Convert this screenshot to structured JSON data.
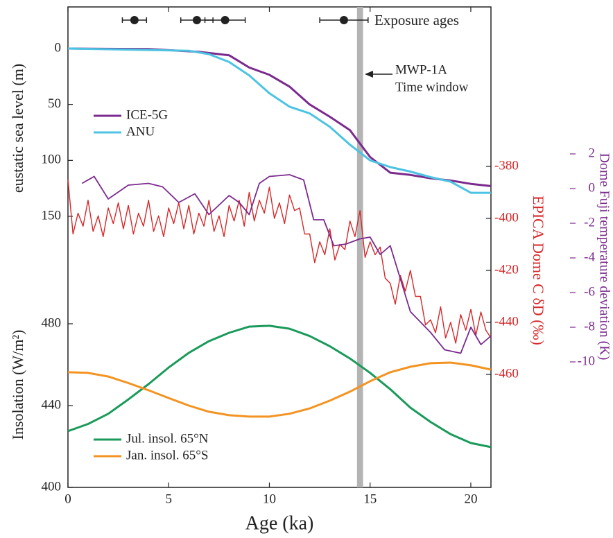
{
  "chart_data": {
    "type": "line",
    "xlabel": "Age (ka)",
    "xlim": [
      0,
      21
    ],
    "xticks": [
      0,
      5,
      10,
      15,
      20
    ],
    "exposure_ages": {
      "label": "Exposure ages",
      "color": "#222222",
      "values": [
        3.3,
        6.4,
        7.8,
        13.7
      ],
      "errors": [
        0.6,
        0.8,
        1.0,
        1.2
      ]
    },
    "annotation": {
      "label": "MWP-1A",
      "sublabel": "Time window",
      "window": [
        14.35,
        14.65
      ],
      "color": "#b4b4b4"
    },
    "sea_level": {
      "ylabel": "eustatic sea level (m)",
      "ylim": [
        0,
        150
      ],
      "yticks": [
        0,
        50,
        100,
        150
      ],
      "series": [
        {
          "name": "ICE-5G",
          "color": "#7b2a8e",
          "x": [
            0,
            4,
            6.5,
            8,
            9,
            10,
            11,
            12,
            13,
            14,
            15,
            16,
            17,
            18,
            19,
            20,
            21
          ],
          "values": [
            0,
            0.5,
            3,
            6,
            17,
            23.5,
            34,
            50,
            61,
            73,
            97,
            111,
            113,
            116,
            118,
            121,
            123
          ]
        },
        {
          "name": "ANU",
          "color": "#4cc3e3",
          "x": [
            0,
            6,
            7,
            8,
            9,
            10,
            11,
            12,
            13,
            14,
            15,
            16,
            17,
            18,
            19,
            20,
            21
          ],
          "values": [
            0,
            2,
            5,
            12,
            24,
            40,
            52,
            58,
            70,
            86,
            100,
            106,
            110,
            115,
            119,
            129,
            129
          ]
        }
      ]
    },
    "epica": {
      "ylabel": "EPICA Dome C δD (‰)",
      "color": "#d62728",
      "ylim": [
        -460,
        -380
      ],
      "yticks": [
        -380,
        -400,
        -420,
        -440,
        -460
      ],
      "x": [
        0,
        0.25,
        0.5,
        0.75,
        1,
        1.25,
        1.5,
        1.75,
        2,
        2.25,
        2.5,
        2.75,
        3,
        3.25,
        3.5,
        3.75,
        4,
        4.25,
        4.5,
        4.75,
        5,
        5.25,
        5.5,
        5.75,
        6,
        6.25,
        6.5,
        6.75,
        7,
        7.25,
        7.5,
        7.75,
        8,
        8.25,
        8.5,
        8.75,
        9,
        9.25,
        9.5,
        9.75,
        10,
        10.25,
        10.5,
        10.75,
        11,
        11.25,
        11.5,
        11.75,
        12,
        12.25,
        12.5,
        12.75,
        13,
        13.25,
        13.5,
        13.75,
        14,
        14.25,
        14.5,
        14.75,
        15,
        15.25,
        15.5,
        15.75,
        16,
        16.25,
        16.5,
        16.75,
        17,
        17.25,
        17.5,
        17.75,
        18,
        18.25,
        18.5,
        18.75,
        19,
        19.25,
        19.5,
        19.75,
        20,
        20.25,
        20.5,
        20.75,
        21
      ],
      "values": [
        -385,
        -406,
        -398,
        -403,
        -393,
        -405,
        -399,
        -407,
        -396,
        -402,
        -394,
        -404,
        -395,
        -406,
        -398,
        -403,
        -393,
        -405,
        -399,
        -407,
        -396,
        -402,
        -394,
        -404,
        -395,
        -406,
        -398,
        -403,
        -393,
        -405,
        -399,
        -407,
        -395,
        -401,
        -393,
        -403,
        -390,
        -401,
        -393,
        -398,
        -388,
        -400,
        -394,
        -402,
        -391,
        -397,
        -396,
        -406,
        -406,
        -417,
        -409,
        -414,
        -404,
        -416,
        -410,
        -412,
        -401,
        -407,
        -397,
        -415,
        -409,
        -414,
        -411,
        -423,
        -425,
        -433,
        -422,
        -428,
        -420,
        -430,
        -430,
        -441,
        -439,
        -444,
        -434,
        -446,
        -440,
        -448,
        -437,
        -443,
        -435,
        -445,
        -436,
        -443,
        -446
      ]
    },
    "dome_fuji": {
      "ylabel": "Dome Fuji temperature deviation (K)",
      "color": "#7b2a8e",
      "ylim": [
        -10,
        2
      ],
      "yticks": [
        2,
        0,
        -2,
        -4,
        -6,
        -8,
        -10
      ],
      "x": [
        0.7,
        1.3,
        2,
        3,
        4,
        4.7,
        5.5,
        6.3,
        7,
        8,
        8.5,
        9,
        9.5,
        10,
        11,
        11.7,
        12.2,
        12.7,
        13.2,
        13.8,
        14.5,
        15,
        15.5,
        16,
        17,
        18,
        18.7,
        19.5,
        20,
        20.5,
        21
      ],
      "values": [
        0.3,
        0.7,
        -0.6,
        0.2,
        0.3,
        0.1,
        -0.8,
        -0.3,
        -1.5,
        -0.4,
        -0.8,
        -1.5,
        0.3,
        0.7,
        0.8,
        0.5,
        -1.8,
        -1.8,
        -3.3,
        -3.2,
        -2.9,
        -2.8,
        -3.8,
        -3.3,
        -7.1,
        -8.3,
        -9.3,
        -9.5,
        -8,
        -9,
        -8.5
      ]
    },
    "insolation": {
      "ylabel": "Insolation (W/m²)",
      "ylim": [
        400,
        480
      ],
      "yticks": [
        400,
        440,
        480
      ],
      "series": [
        {
          "name": "Jul. insol. 65°N",
          "color": "#1a9a5a",
          "x": [
            0,
            1,
            2,
            3,
            4,
            5,
            6,
            7,
            8,
            9,
            10,
            11,
            12,
            13,
            14,
            15,
            16,
            17,
            18,
            19,
            20,
            21
          ],
          "values": [
            427.5,
            431,
            436,
            443,
            450.5,
            458.6,
            465.8,
            471.5,
            475.6,
            478.6,
            479,
            477.6,
            474,
            469,
            463,
            456,
            448,
            439,
            432,
            426,
            421.7,
            419.7
          ]
        },
        {
          "name": "Jan. insol. 65°S",
          "color": "#f39321",
          "x": [
            0,
            1,
            2,
            3,
            4,
            5,
            6,
            7,
            8,
            9,
            10,
            11,
            12,
            13,
            14,
            15,
            16,
            17,
            18,
            19,
            20,
            21
          ],
          "values": [
            456.3,
            456,
            454.2,
            451,
            447.5,
            443.7,
            440,
            437,
            435.3,
            434.6,
            434.6,
            436,
            438.6,
            442.4,
            446.8,
            451.9,
            456.3,
            459,
            460.7,
            461,
            459.7,
            457.6
          ]
        }
      ]
    }
  }
}
